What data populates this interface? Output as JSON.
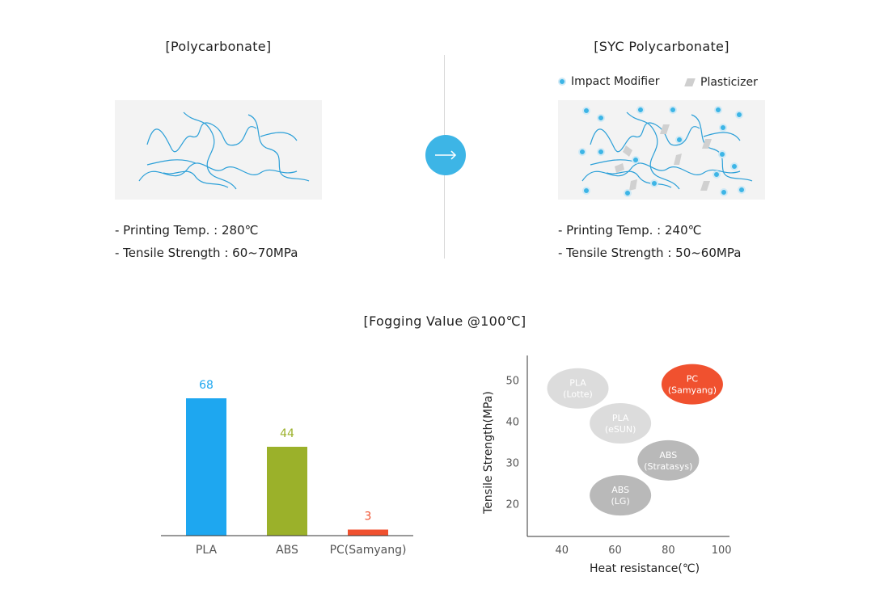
{
  "left": {
    "title": "[Polycarbonate]",
    "specs": [
      "- Printing Temp. : 280℃",
      "- Tensile Strength : 60~70MPa"
    ]
  },
  "right": {
    "title": "[SYC Polycarbonate]",
    "legend": {
      "impact_modifier": "Impact Modifier",
      "plasticizer": "Plasticizer"
    },
    "specs": [
      "- Printing Temp. : 240℃",
      "- Tensile Strength : 50~60MPa"
    ]
  },
  "arrow_icon": "arrow-right-icon",
  "fogging_title": "[Fogging Value @100℃]",
  "colors": {
    "accent": "#3db5e6",
    "pla": "#1ea7f0",
    "abs": "#9bb12a",
    "pc": "#f0512f",
    "bubble_light": "#dcdcdc",
    "bubble_dark": "#b9b9b9"
  },
  "chart_data": [
    {
      "type": "bar",
      "categories": [
        "PLA",
        "ABS",
        "PC(Samyang)"
      ],
      "values": [
        68,
        44,
        3
      ],
      "labels": [
        "68",
        "44",
        "3"
      ],
      "ylim": [
        0,
        80
      ]
    },
    {
      "type": "scatter",
      "xlabel": "Heat resistance(℃)",
      "ylabel": "Tensile Strength(MPa)",
      "xticks": [
        40,
        60,
        80,
        100
      ],
      "yticks": [
        20,
        30,
        40,
        50
      ],
      "xlim": [
        27,
        103
      ],
      "ylim": [
        12,
        56
      ],
      "points": [
        {
          "name": [
            "PLA",
            "(Lotte)"
          ],
          "x": 46,
          "y": 48,
          "style": "light"
        },
        {
          "name": [
            "PLA",
            "(eSUN)"
          ],
          "x": 62,
          "y": 39.5,
          "style": "light"
        },
        {
          "name": [
            "ABS",
            "(Stratasys)"
          ],
          "x": 80,
          "y": 30.5,
          "style": "dark"
        },
        {
          "name": [
            "ABS",
            "(LG)"
          ],
          "x": 62,
          "y": 22,
          "style": "dark"
        },
        {
          "name": [
            "PC",
            "(Samyang)"
          ],
          "x": 89,
          "y": 49,
          "style": "highlight"
        }
      ]
    }
  ]
}
